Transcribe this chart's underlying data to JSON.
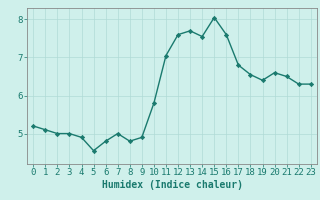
{
  "x": [
    0,
    1,
    2,
    3,
    4,
    5,
    6,
    7,
    8,
    9,
    10,
    11,
    12,
    13,
    14,
    15,
    16,
    17,
    18,
    19,
    20,
    21,
    22,
    23
  ],
  "y": [
    5.2,
    5.1,
    5.0,
    5.0,
    4.9,
    4.55,
    4.8,
    5.0,
    4.8,
    4.9,
    5.8,
    7.05,
    7.6,
    7.7,
    7.55,
    8.05,
    7.6,
    6.8,
    6.55,
    6.4,
    6.6,
    6.5,
    6.3,
    6.3
  ],
  "line_color": "#1a7a6e",
  "marker": "D",
  "markersize": 2.2,
  "linewidth": 1.0,
  "bg_color": "#cff0eb",
  "grid_color": "#b0dbd6",
  "xlabel": "Humidex (Indice chaleur)",
  "xlim": [
    -0.5,
    23.5
  ],
  "ylim": [
    4.2,
    8.3
  ],
  "yticks": [
    5,
    6,
    7,
    8
  ],
  "xticks": [
    0,
    1,
    2,
    3,
    4,
    5,
    6,
    7,
    8,
    9,
    10,
    11,
    12,
    13,
    14,
    15,
    16,
    17,
    18,
    19,
    20,
    21,
    22,
    23
  ],
  "xlabel_fontsize": 7,
  "tick_fontsize": 6.5,
  "tick_color": "#1a7a6e",
  "axis_color": "#888888"
}
